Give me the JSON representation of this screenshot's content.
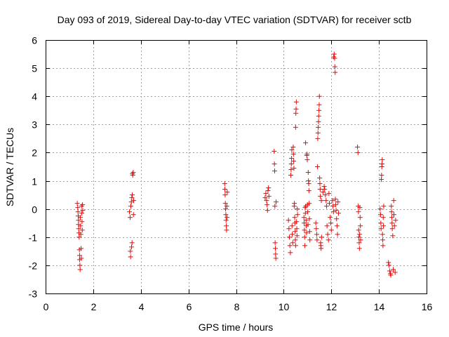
{
  "chart_data": {
    "type": "scatter",
    "title": "Day 093 of 2019, Sidereal Day-to-day VTEC variation (SDTVAR) for receiver sctb",
    "xlabel": "GPS time / hours",
    "ylabel": "SDTVAR / TECUs",
    "xlim": [
      0,
      16
    ],
    "ylim": [
      -3,
      6
    ],
    "xticks": [
      0,
      2,
      4,
      6,
      8,
      10,
      12,
      14,
      16
    ],
    "yticks": [
      -3,
      -2,
      -1,
      0,
      1,
      2,
      3,
      4,
      5,
      6
    ],
    "grid": true,
    "marker": "+",
    "marker_color": "#ff0000",
    "series": [
      {
        "name": "SDTVAR",
        "points": [
          [
            1.33,
            0.2
          ],
          [
            1.35,
            0.05
          ],
          [
            1.36,
            -0.1
          ],
          [
            1.37,
            -0.25
          ],
          [
            1.38,
            -0.4
          ],
          [
            1.38,
            -0.55
          ],
          [
            1.39,
            -0.7
          ],
          [
            1.4,
            -0.85
          ],
          [
            1.41,
            -1.0
          ],
          [
            1.42,
            -1.45
          ],
          [
            1.43,
            -1.65
          ],
          [
            1.43,
            -1.8
          ],
          [
            1.44,
            -2.0
          ],
          [
            1.45,
            -2.15
          ],
          [
            1.46,
            -0.3
          ],
          [
            1.47,
            -0.6
          ],
          [
            1.48,
            -0.9
          ],
          [
            1.49,
            -1.4
          ],
          [
            1.5,
            -1.75
          ],
          [
            1.51,
            0.1
          ],
          [
            1.52,
            -0.15
          ],
          [
            1.53,
            -0.45
          ],
          [
            1.54,
            -0.75
          ],
          [
            1.55,
            0.15
          ],
          [
            1.56,
            -0.05
          ],
          [
            3.52,
            -0.1
          ],
          [
            3.55,
            -0.3
          ],
          [
            3.56,
            -1.5
          ],
          [
            3.57,
            -1.7
          ],
          [
            3.58,
            0.1
          ],
          [
            3.6,
            0.25
          ],
          [
            3.61,
            -1.35
          ],
          [
            3.62,
            0.4
          ],
          [
            3.63,
            -1.2
          ],
          [
            3.64,
            0.5
          ],
          [
            3.65,
            1.25
          ],
          [
            3.66,
            1.2
          ],
          [
            3.68,
            1.3
          ],
          [
            3.69,
            -0.2
          ],
          [
            3.7,
            0.3
          ],
          [
            7.52,
            0.9
          ],
          [
            7.53,
            0.7
          ],
          [
            7.54,
            0.5
          ],
          [
            7.55,
            0.2
          ],
          [
            7.56,
            0.0
          ],
          [
            7.57,
            -0.2
          ],
          [
            7.58,
            -0.4
          ],
          [
            7.59,
            -0.6
          ],
          [
            7.6,
            -0.75
          ],
          [
            7.61,
            0.1
          ],
          [
            7.62,
            -0.3
          ],
          [
            7.63,
            0.6
          ],
          [
            9.22,
            0.4
          ],
          [
            9.25,
            0.55
          ],
          [
            9.28,
            0.3
          ],
          [
            9.3,
            0.15
          ],
          [
            9.32,
            -0.05
          ],
          [
            9.34,
            0.65
          ],
          [
            9.36,
            0.75
          ],
          [
            9.38,
            0.45
          ],
          [
            9.6,
            2.05
          ],
          [
            9.61,
            1.6
          ],
          [
            9.62,
            1.35
          ],
          [
            9.63,
            0.1
          ],
          [
            9.64,
            -1.2
          ],
          [
            9.65,
            -1.4
          ],
          [
            9.66,
            -1.6
          ],
          [
            9.67,
            -1.75
          ],
          [
            9.68,
            0.25
          ],
          [
            10.2,
            -0.4
          ],
          [
            10.22,
            -0.7
          ],
          [
            10.24,
            -1.0
          ],
          [
            10.26,
            -1.3
          ],
          [
            10.28,
            -1.55
          ],
          [
            10.3,
            1.2
          ],
          [
            10.31,
            1.4
          ],
          [
            10.32,
            1.6
          ],
          [
            10.33,
            1.8
          ],
          [
            10.34,
            2.1
          ],
          [
            10.35,
            -0.6
          ],
          [
            10.36,
            -0.9
          ],
          [
            10.38,
            -1.2
          ],
          [
            10.4,
            2.2
          ],
          [
            10.41,
            1.95
          ],
          [
            10.42,
            1.7
          ],
          [
            10.43,
            1.45
          ],
          [
            10.44,
            0.1
          ],
          [
            10.45,
            0.2
          ],
          [
            10.46,
            -0.3
          ],
          [
            10.47,
            -0.5
          ],
          [
            10.48,
            -0.8
          ],
          [
            10.49,
            -1.1
          ],
          [
            10.5,
            -1.3
          ],
          [
            10.5,
            2.9
          ],
          [
            10.51,
            3.4
          ],
          [
            10.52,
            3.55
          ],
          [
            10.53,
            3.8
          ],
          [
            10.54,
            -0.45
          ],
          [
            10.55,
            -0.7
          ],
          [
            10.56,
            -0.95
          ],
          [
            10.57,
            0.0
          ],
          [
            10.58,
            -0.2
          ],
          [
            10.85,
            -0.3
          ],
          [
            10.86,
            -0.5
          ],
          [
            10.87,
            -0.75
          ],
          [
            10.88,
            -1.0
          ],
          [
            10.89,
            -1.3
          ],
          [
            10.9,
            0.05
          ],
          [
            10.91,
            -0.15
          ],
          [
            10.92,
            2.35
          ],
          [
            10.93,
            0.1
          ],
          [
            10.94,
            -0.4
          ],
          [
            10.95,
            -0.6
          ],
          [
            10.96,
            -0.85
          ],
          [
            10.97,
            1.9
          ],
          [
            10.98,
            1.95
          ],
          [
            10.99,
            1.75
          ],
          [
            11.0,
            0.15
          ],
          [
            11.01,
            -0.1
          ],
          [
            11.02,
            -0.55
          ],
          [
            11.03,
            1.3
          ],
          [
            11.04,
            1.0
          ],
          [
            11.05,
            0.9
          ],
          [
            11.06,
            0.65
          ],
          [
            11.07,
            0.2
          ],
          [
            11.08,
            -0.35
          ],
          [
            11.09,
            -0.8
          ],
          [
            11.1,
            -1.1
          ],
          [
            11.35,
            -0.5
          ],
          [
            11.37,
            -0.7
          ],
          [
            11.39,
            -0.9
          ],
          [
            11.4,
            -1.1
          ],
          [
            11.42,
            1.5
          ],
          [
            11.43,
            2.5
          ],
          [
            11.44,
            2.7
          ],
          [
            11.45,
            2.9
          ],
          [
            11.46,
            3.1
          ],
          [
            11.47,
            3.3
          ],
          [
            11.48,
            3.5
          ],
          [
            11.49,
            3.7
          ],
          [
            11.5,
            4.0
          ],
          [
            11.51,
            1.1
          ],
          [
            11.52,
            0.9
          ],
          [
            11.53,
            0.7
          ],
          [
            11.54,
            0.45
          ],
          [
            11.55,
            -1.2
          ],
          [
            11.56,
            -1.3
          ],
          [
            11.57,
            -1.4
          ],
          [
            11.58,
            0.3
          ],
          [
            11.59,
            -1.0
          ],
          [
            11.65,
            0.6
          ],
          [
            11.7,
            0.8
          ],
          [
            11.72,
            0.7
          ],
          [
            11.75,
            0.5
          ],
          [
            11.78,
            0.3
          ],
          [
            11.8,
            0.1
          ],
          [
            11.82,
            -0.6
          ],
          [
            11.85,
            -0.9
          ],
          [
            11.88,
            -1.1
          ],
          [
            11.9,
            0.55
          ],
          [
            11.92,
            0.2
          ],
          [
            11.95,
            -0.3
          ],
          [
            11.98,
            -0.5
          ],
          [
            12.0,
            -0.75
          ],
          [
            12.05,
            0.3
          ],
          [
            12.07,
            0.1
          ],
          [
            12.09,
            -0.1
          ],
          [
            12.1,
            5.4
          ],
          [
            12.12,
            5.5
          ],
          [
            12.14,
            5.35
          ],
          [
            12.15,
            5.05
          ],
          [
            12.16,
            4.85
          ],
          [
            12.17,
            0.35
          ],
          [
            12.18,
            0.15
          ],
          [
            12.2,
            -0.05
          ],
          [
            12.22,
            -0.35
          ],
          [
            12.24,
            -0.6
          ],
          [
            12.26,
            -0.9
          ],
          [
            12.28,
            0.25
          ],
          [
            12.3,
            -0.15
          ],
          [
            13.1,
            2.2
          ],
          [
            13.12,
            2.0
          ],
          [
            13.13,
            0.1
          ],
          [
            13.14,
            -0.1
          ],
          [
            13.15,
            -0.75
          ],
          [
            13.16,
            -1.0
          ],
          [
            13.17,
            -1.2
          ],
          [
            13.18,
            -1.4
          ],
          [
            13.19,
            -0.9
          ],
          [
            13.2,
            0.05
          ],
          [
            13.21,
            -0.3
          ],
          [
            13.22,
            -0.6
          ],
          [
            13.23,
            -1.1
          ],
          [
            14.05,
            0.0
          ],
          [
            14.07,
            -0.2
          ],
          [
            14.08,
            -0.5
          ],
          [
            14.09,
            -0.7
          ],
          [
            14.1,
            1.05
          ],
          [
            14.11,
            1.2
          ],
          [
            14.12,
            1.5
          ],
          [
            14.13,
            1.6
          ],
          [
            14.14,
            1.75
          ],
          [
            14.15,
            -0.9
          ],
          [
            14.16,
            -1.1
          ],
          [
            14.17,
            -1.3
          ],
          [
            14.18,
            -0.3
          ],
          [
            14.19,
            -0.6
          ],
          [
            14.2,
            0.1
          ],
          [
            14.4,
            -1.9
          ],
          [
            14.42,
            -2.0
          ],
          [
            14.45,
            -2.2
          ],
          [
            14.48,
            -2.3
          ],
          [
            14.5,
            -2.35
          ],
          [
            14.52,
            0.1
          ],
          [
            14.53,
            -0.1
          ],
          [
            14.54,
            -0.3
          ],
          [
            14.55,
            -0.5
          ],
          [
            14.56,
            -0.7
          ],
          [
            14.58,
            -0.95
          ],
          [
            14.6,
            -2.15
          ],
          [
            14.62,
            0.3
          ],
          [
            14.63,
            -0.2
          ],
          [
            14.65,
            -0.6
          ],
          [
            14.68,
            -2.25
          ],
          [
            14.7,
            -0.4
          ]
        ]
      }
    ]
  }
}
